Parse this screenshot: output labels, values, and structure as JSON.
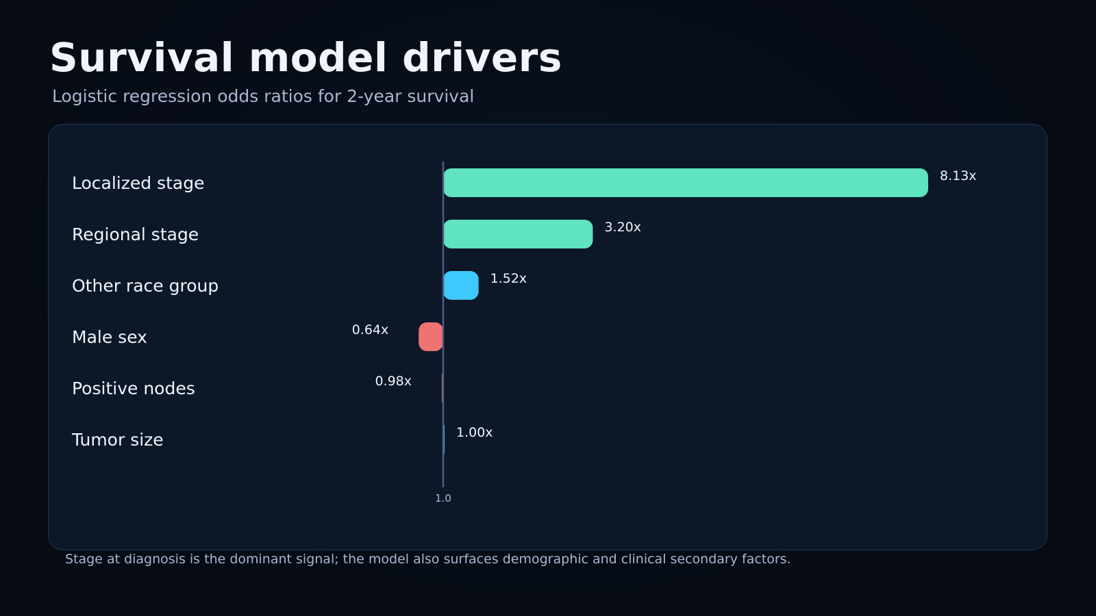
{
  "title": "Survival model drivers",
  "subtitle": "Logistic regression odds ratios for 2-year survival",
  "footnote": "Stage at diagnosis is the dominant signal; the model also surfaces demographic and clinical secondary factors.",
  "colors": {
    "background": "#060b14",
    "panel": "#0c1828",
    "panel_border": "#223755",
    "strong_positive": "#5fe3c0",
    "positive": "#3ec9ff",
    "negative": "#ef7272",
    "axis": "#4a5e86",
    "label_text": "#f1f4fa",
    "muted_text": "#a9b7d0"
  },
  "chart_data": {
    "type": "bar",
    "orientation": "horizontal",
    "baseline": 1.0,
    "baseline_tick_label": "1.0",
    "categories": [
      "Localized stage",
      "Regional stage",
      "Other race group",
      "Male sex",
      "Positive nodes",
      "Tumor size"
    ],
    "values": [
      8.13,
      3.2,
      1.52,
      0.64,
      0.98,
      1.0
    ],
    "value_labels": [
      "8.13x",
      "3.20x",
      "1.52x",
      "0.64x",
      "0.98x",
      "1.00x"
    ],
    "bar_colors": [
      "#5fe3c0",
      "#5fe3c0",
      "#3ec9ff",
      "#ef7272",
      "#ef7272",
      "#3ec9ff"
    ],
    "xlim": [
      0.6,
      8.9
    ],
    "grid": false,
    "legend": "none"
  }
}
